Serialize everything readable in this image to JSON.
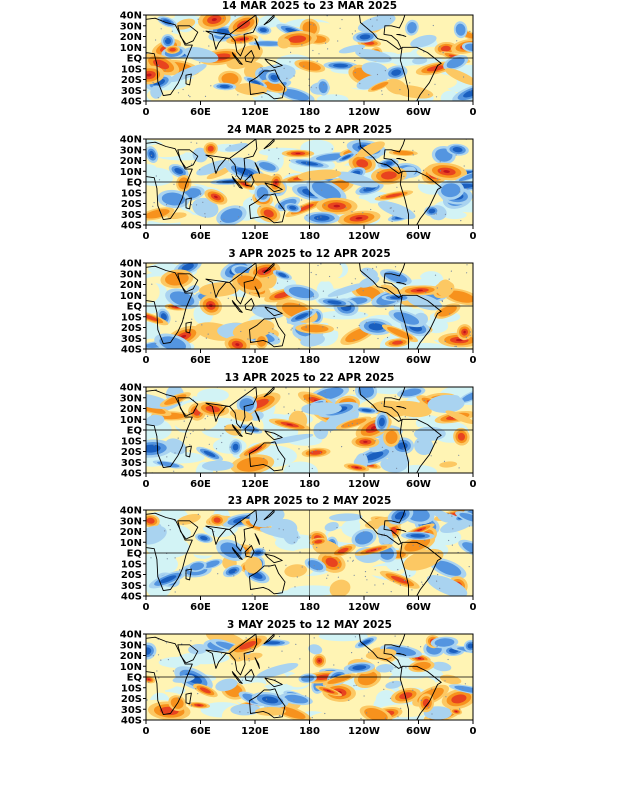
{
  "figure": {
    "colors": {
      "deep_red": "#c1141c",
      "red": "#e8431f",
      "orange": "#f7921d",
      "light_orange": "#fcc863",
      "pale_yellow": "#fff4b4",
      "pale_cyan": "#d2f3f5",
      "light_blue": "#a9d3f0",
      "blue": "#5495e0",
      "deep_blue": "#1a5fbf",
      "coast": "#000000",
      "grid_line": "#7a8aa0"
    },
    "lat_labels": [
      "40N",
      "30N",
      "20N",
      "10N",
      "EQ",
      "10S",
      "20S",
      "30S",
      "40S"
    ],
    "lon_labels": [
      "0",
      "60E",
      "120E",
      "180",
      "120W",
      "60W",
      "0"
    ],
    "panels": [
      {
        "title": "14 MAR 2025 to 23 MAR 2025"
      },
      {
        "title": "24 MAR 2025 to 2 APR 2025"
      },
      {
        "title": "3 APR 2025 to 12 APR 2025"
      },
      {
        "title": "13 APR 2025 to 22 APR 2025"
      },
      {
        "title": "23 APR 2025 to 2 MAY 2025"
      },
      {
        "title": "3 MAY 2025 to 12 MAY 2025"
      }
    ]
  }
}
